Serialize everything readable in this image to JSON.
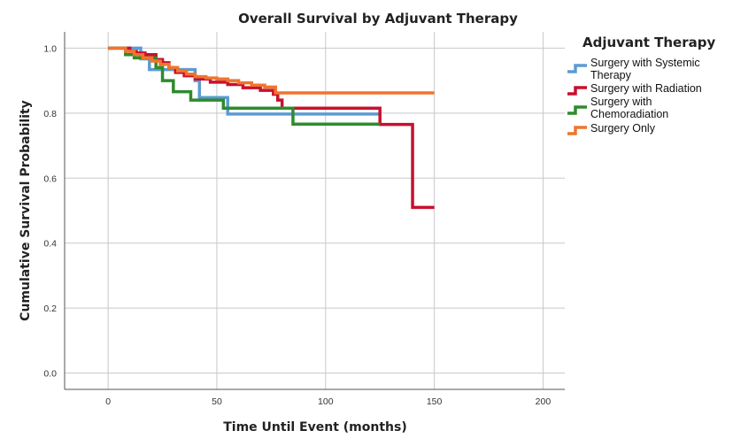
{
  "chart_data": {
    "type": "line",
    "title": "Overall Survival by Adjuvant Therapy",
    "xlabel": "Time Until Event (months)",
    "ylabel": "Cumulative Survival Probability",
    "xlim": [
      -20,
      210
    ],
    "ylim": [
      -0.05,
      1.05
    ],
    "xticks": [
      0,
      50,
      100,
      150,
      200
    ],
    "yticks": [
      0.0,
      0.2,
      0.4,
      0.6,
      0.8,
      1.0
    ],
    "xtick_labels": [
      "0",
      "50",
      "100",
      "150",
      "200"
    ],
    "ytick_labels": [
      "0.0",
      "0.2",
      "0.4",
      "0.6",
      "0.8",
      "1.0"
    ],
    "grid": true,
    "step": true,
    "legend": {
      "title": "Adjuvant Therapy",
      "position": "right",
      "entries": [
        {
          "lines": [
            "Surgery with Systemic",
            "Therapy"
          ],
          "color": "#5b9bd5"
        },
        {
          "lines": [
            "Surgery with Radiation"
          ],
          "color": "#c8102e"
        },
        {
          "lines": [
            "Surgery with",
            "Chemoradiation"
          ],
          "color": "#2e8b2e"
        },
        {
          "lines": [
            "Surgery Only"
          ],
          "color": "#f0742e"
        }
      ]
    },
    "series": [
      {
        "name": "Surgery with Systemic Therapy",
        "color": "#5b9bd5",
        "x": [
          0,
          15,
          19,
          40,
          42,
          55,
          125
        ],
        "y": [
          1.0,
          0.967,
          0.934,
          0.9,
          0.848,
          0.797,
          0.797
        ]
      },
      {
        "name": "Surgery with Radiation",
        "color": "#c8102e",
        "x": [
          0,
          10,
          13,
          17,
          22,
          25,
          28,
          31,
          35,
          40,
          47,
          55,
          62,
          70,
          76,
          78,
          80,
          125,
          140,
          150
        ],
        "y": [
          1.0,
          0.99,
          0.985,
          0.98,
          0.965,
          0.955,
          0.94,
          0.925,
          0.915,
          0.905,
          0.895,
          0.888,
          0.878,
          0.87,
          0.858,
          0.84,
          0.815,
          0.765,
          0.51,
          0.51
        ]
      },
      {
        "name": "Surgery with Chemoradiation",
        "color": "#2e8b2e",
        "x": [
          0,
          8,
          12,
          22,
          25,
          30,
          38,
          53,
          85,
          125
        ],
        "y": [
          1.0,
          0.98,
          0.97,
          0.94,
          0.9,
          0.866,
          0.84,
          0.815,
          0.766,
          0.766
        ]
      },
      {
        "name": "Surgery Only",
        "color": "#f0742e",
        "x": [
          0,
          8,
          12,
          16,
          20,
          24,
          28,
          32,
          36,
          40,
          45,
          50,
          55,
          60,
          66,
          72,
          77,
          150
        ],
        "y": [
          1.0,
          0.99,
          0.98,
          0.97,
          0.96,
          0.95,
          0.94,
          0.93,
          0.92,
          0.912,
          0.908,
          0.905,
          0.9,
          0.893,
          0.886,
          0.88,
          0.862,
          0.862
        ]
      }
    ]
  }
}
